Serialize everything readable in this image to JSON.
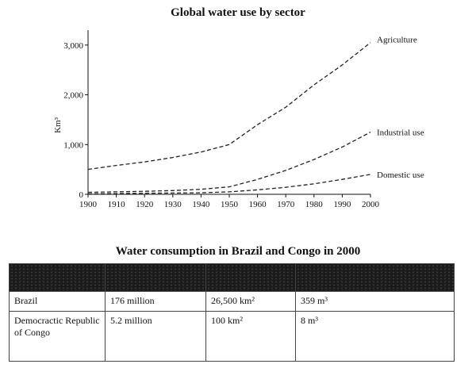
{
  "chart_data": [
    {
      "type": "line",
      "title": "Global water use by sector",
      "ylabel": "Km³",
      "xlabel": "",
      "xlim": [
        1900,
        2000
      ],
      "ylim": [
        0,
        3300
      ],
      "x_ticks": [
        "1900",
        "1910",
        "1920",
        "1930",
        "1940",
        "1950",
        "1960",
        "1970",
        "1980",
        "1990",
        "2000"
      ],
      "y_ticks": [
        "0",
        "1,000",
        "2,000",
        "3,000"
      ],
      "x": [
        1900,
        1910,
        1920,
        1930,
        1940,
        1950,
        1960,
        1970,
        1980,
        1990,
        2000
      ],
      "series": [
        {
          "name": "Agriculture",
          "values": [
            500,
            580,
            650,
            740,
            850,
            1000,
            1400,
            1750,
            2200,
            2600,
            3050
          ]
        },
        {
          "name": "Industrial use",
          "values": [
            40,
            50,
            60,
            75,
            100,
            150,
            300,
            480,
            700,
            950,
            1250
          ]
        },
        {
          "name": "Domestic use",
          "values": [
            10,
            15,
            20,
            25,
            30,
            50,
            90,
            140,
            210,
            300,
            400
          ]
        }
      ],
      "grid": false,
      "line_style": "dashed"
    },
    {
      "type": "table",
      "title": "Water consumption in Brazil and Congo in 2000",
      "rows": [
        [
          "Brazil",
          "176 million",
          "26,500 km²",
          "359 m³"
        ],
        [
          "Democractic Republic of Congo",
          "5.2 million",
          "100 km²",
          "8 m³"
        ]
      ]
    }
  ]
}
